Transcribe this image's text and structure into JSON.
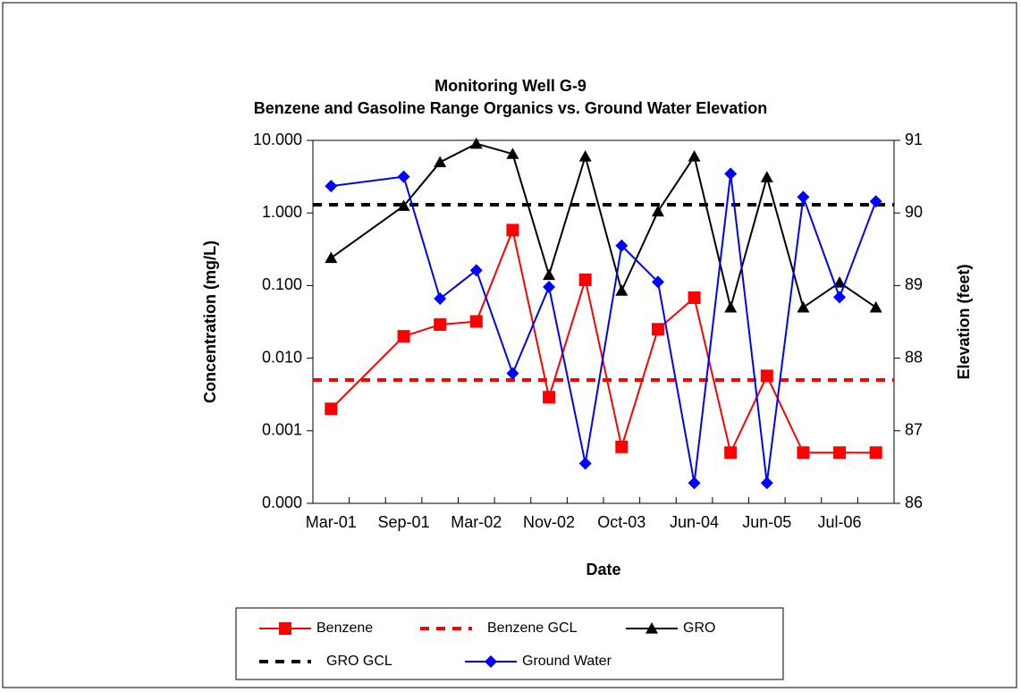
{
  "chart_data": {
    "type": "line",
    "title": "Monitoring Well G-9",
    "subtitle": "Benzene and Gasoline Range Organics vs. Ground Water Elevation",
    "xlabel": "Date",
    "ylabel": "Concentration (mg/L)",
    "y2label": "Elevation (feet)",
    "categories": [
      "Mar-01",
      null,
      "Sep-01",
      null,
      "Mar-02",
      null,
      "Nov-02",
      null,
      "Oct-03",
      null,
      "Jun-04",
      null,
      "Jun-05",
      null,
      "Jul-06",
      null
    ],
    "ylog": true,
    "ylim": [
      0.0001,
      10
    ],
    "yticks": [
      {
        "value": 0.0001,
        "label": "0.000"
      },
      0.001,
      {
        "value": 0.01,
        "label": "0.010"
      },
      {
        "value": 0.1,
        "label": "0.100"
      },
      {
        "value": 1,
        "label": "1.000"
      },
      {
        "value": 10,
        "label": "10.000"
      }
    ],
    "y2lim": [
      86,
      91
    ],
    "y2ticks": [
      86,
      87,
      88,
      89,
      90,
      91
    ],
    "series": [
      {
        "name": "Benzene",
        "color": "#ff0000",
        "marker": "square",
        "values": [
          0.002,
          null,
          0.02,
          0.029,
          0.032,
          0.58,
          0.0029,
          0.12,
          0.0006,
          0.025,
          0.068,
          0.0005,
          0.0057,
          0.0005,
          0.0005,
          0.0005
        ]
      },
      {
        "name": "Benzene GCL",
        "color": "#ff0000",
        "dashed": true,
        "value": 0.005
      },
      {
        "name": "GRO",
        "color": "#000000",
        "marker": "triangle",
        "values": [
          0.24,
          null,
          1.25,
          5,
          9,
          6.5,
          0.14,
          6,
          0.085,
          1.05,
          6,
          0.05,
          3.1,
          0.05,
          0.11,
          0.05
        ]
      },
      {
        "name": "GRO GCL",
        "color": "#000000",
        "dashed": true,
        "value": 1.3
      },
      {
        "name": "Ground Water",
        "color": "#0000ff",
        "marker": "diamond",
        "axis": "y2",
        "values": [
          90.37,
          null,
          90.5,
          88.82,
          89.21,
          87.79,
          88.98,
          86.55,
          89.55,
          89.05,
          86.28,
          90.54,
          86.28,
          90.22,
          88.84,
          90.16
        ]
      }
    ]
  }
}
